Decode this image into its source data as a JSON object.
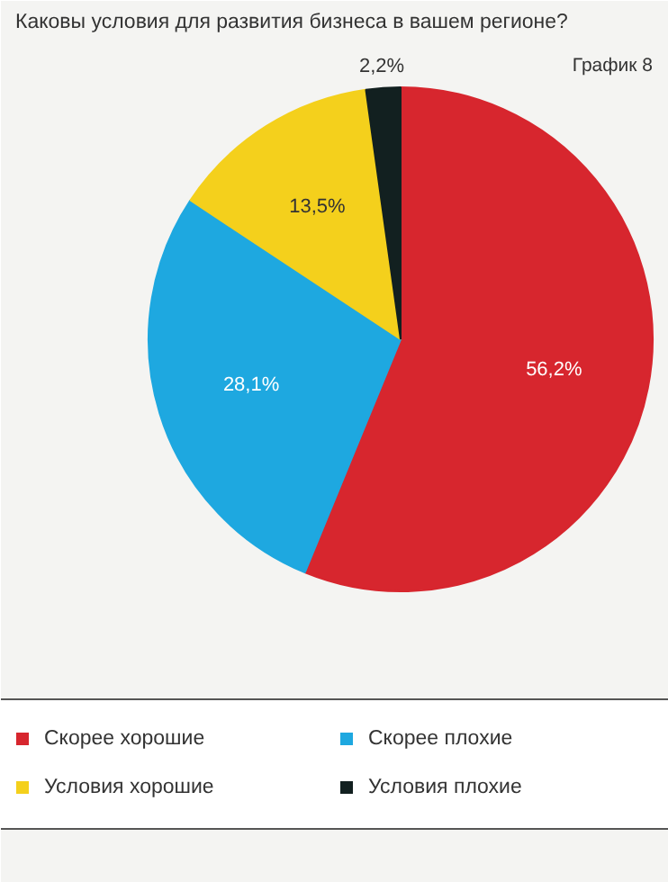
{
  "chart_data": {
    "type": "pie",
    "title": "Каковы условия для развития бизнеса в вашем регионе?",
    "subtitle": "График 8",
    "categories": [
      "Скорее хорошие",
      "Скорее плохие",
      "Условия хорошие",
      "Условия плохие"
    ],
    "values": [
      56.2,
      28.1,
      13.5,
      2.2
    ],
    "value_labels": [
      "56,2%",
      "28,1%",
      "13,5%",
      "2,2%"
    ],
    "colors": [
      "#d7262e",
      "#1ea8e0",
      "#f4d01c",
      "#122020"
    ],
    "legend": "bottom"
  }
}
